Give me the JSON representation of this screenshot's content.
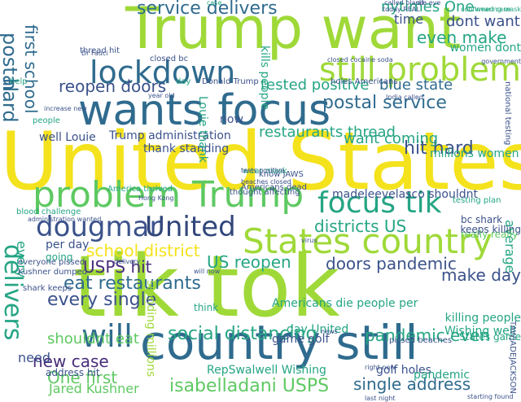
{
  "word_cloud": {
    "palette": {
      "yellow": "#f4e21c",
      "lime": "#9fd938",
      "green": "#5ec962",
      "teal": "#25a584",
      "cyan": "#1f9e89",
      "blue": "#2f6b8e",
      "indigo": "#3b528b",
      "navy": "#31467a",
      "purple": "#472d7b",
      "dark": "#440154"
    },
    "words": [
      {
        "text": "United States",
        "color": "yellow"
      },
      {
        "text": "tik tok",
        "color": "lime"
      },
      {
        "text": "Trump want",
        "color": "lime"
      },
      {
        "text": "wants focus",
        "color": "blue"
      },
      {
        "text": "country still",
        "color": "blue"
      },
      {
        "text": "problem Trump",
        "color": "green"
      },
      {
        "text": "States country",
        "color": "lime"
      },
      {
        "text": "still problem",
        "color": "lime"
      },
      {
        "text": "lockdown",
        "color": "blue"
      },
      {
        "text": "focus tik",
        "color": "teal"
      },
      {
        "text": "dougmar",
        "color": "indigo"
      },
      {
        "text": "United",
        "color": "navy"
      },
      {
        "text": "will",
        "color": "blue"
      },
      {
        "text": "delivers",
        "color": "teal"
      },
      {
        "text": "service delivers",
        "color": "blue"
      },
      {
        "text": "postal service",
        "color": "blue"
      },
      {
        "text": "hit hard",
        "color": "indigo"
      },
      {
        "text": "eat restaurants",
        "color": "blue"
      },
      {
        "text": "every single",
        "color": "indigo"
      },
      {
        "text": "social distancing",
        "color": "teal"
      },
      {
        "text": "USPS hit",
        "color": "purple"
      },
      {
        "text": "new case",
        "color": "purple"
      },
      {
        "text": "reopen doors",
        "color": "indigo"
      },
      {
        "text": "school district",
        "color": "yellow"
      },
      {
        "text": "isabelladani USPS",
        "color": "green"
      },
      {
        "text": "One first",
        "color": "green"
      },
      {
        "text": "single address",
        "color": "blue"
      },
      {
        "text": "pandemic even",
        "color": "teal"
      },
      {
        "text": "make day",
        "color": "indigo"
      },
      {
        "text": "doors pandemic",
        "color": "indigo"
      },
      {
        "text": "US reopen",
        "color": "teal"
      },
      {
        "text": "districts US",
        "color": "teal"
      },
      {
        "text": "even make",
        "color": "teal"
      },
      {
        "text": "dont want",
        "color": "indigo"
      },
      {
        "text": "postal",
        "color": "blue"
      },
      {
        "text": "first school",
        "color": "blue"
      },
      {
        "text": "hard",
        "color": "blue"
      },
      {
        "text": "blue state",
        "color": "blue"
      },
      {
        "text": "want coming",
        "color": "teal"
      },
      {
        "text": "nytimes One",
        "color": "teal"
      },
      {
        "text": "time",
        "color": "indigo"
      },
      {
        "text": "tested positive",
        "color": "teal"
      },
      {
        "text": "restaurants thread",
        "color": "teal"
      },
      {
        "text": "shouldnt eat",
        "color": "green"
      },
      {
        "text": "need",
        "color": "indigo"
      },
      {
        "text": "Jared Kushner",
        "color": "green"
      },
      {
        "text": "madeleevelasco shouldnt",
        "color": "indigo"
      },
      {
        "text": "Americans die people per",
        "color": "teal"
      },
      {
        "text": "Trump administration",
        "color": "indigo"
      },
      {
        "text": "thank standing",
        "color": "indigo"
      },
      {
        "text": "killing people",
        "color": "teal"
      },
      {
        "text": "millions women",
        "color": "teal"
      },
      {
        "text": "well Louie",
        "color": "indigo"
      },
      {
        "text": "RepSwalwell Wishing",
        "color": "teal"
      },
      {
        "text": "golf holes",
        "color": "indigo"
      },
      {
        "text": "Wishing well",
        "color": "teal"
      },
      {
        "text": "per day",
        "color": "indigo"
      },
      {
        "text": "game golf",
        "color": "indigo"
      },
      {
        "text": "day United",
        "color": "teal"
      },
      {
        "text": "women dont",
        "color": "teal"
      },
      {
        "text": "now",
        "color": "indigo"
      },
      {
        "text": "standing millions",
        "color": "lime"
      },
      {
        "text": "Louie thank",
        "color": "teal"
      },
      {
        "text": "kills people",
        "color": "teal"
      },
      {
        "text": "pandemic",
        "color": "teal"
      },
      {
        "text": "average",
        "color": "teal"
      },
      {
        "text": "address hit",
        "color": "indigo"
      },
      {
        "text": "every",
        "color": "teal"
      },
      {
        "text": "going",
        "color": "teal"
      },
      {
        "text": "bc shark",
        "color": "indigo"
      },
      {
        "text": "really really",
        "color": "green"
      },
      {
        "text": "States game",
        "color": "teal"
      },
      {
        "text": "keeps killing",
        "color": "indigo"
      },
      {
        "text": "think",
        "color": "teal"
      },
      {
        "text": "Donald Trump",
        "color": "indigo"
      },
      {
        "text": "holes Americans",
        "color": "indigo"
      },
      {
        "text": "know JAWS",
        "color": "indigo"
      },
      {
        "text": "thread hit",
        "color": "indigo"
      },
      {
        "text": "help",
        "color": "teal"
      },
      {
        "text": "day",
        "color": "teal"
      },
      {
        "text": "people",
        "color": "teal"
      },
      {
        "text": "blood challenge",
        "color": "teal"
      },
      {
        "text": "America thrived",
        "color": "teal"
      },
      {
        "text": "thought affecting",
        "color": "indigo"
      },
      {
        "text": "everyone pissed",
        "color": "indigo"
      },
      {
        "text": "Kushner dumped",
        "color": "indigo"
      },
      {
        "text": "shark keeps",
        "color": "indigo"
      },
      {
        "text": "pissed beaches",
        "color": "indigo"
      },
      {
        "text": "closed bc",
        "color": "indigo"
      },
      {
        "text": "Americans dead",
        "color": "indigo"
      },
      {
        "text": "wear mask",
        "color": "teal"
      },
      {
        "text": "testing plan",
        "color": "teal"
      },
      {
        "text": "Hong Kong",
        "color": "indigo"
      },
      {
        "text": "national testing",
        "color": "indigo"
      },
      {
        "text": "year old",
        "color": "indigo"
      },
      {
        "text": "called bland",
        "color": "indigo"
      },
      {
        "text": "die eve",
        "color": "indigo"
      },
      {
        "text": "today REAL",
        "color": "indigo"
      },
      {
        "text": "Dr Fauci",
        "color": "indigo"
      },
      {
        "text": "case",
        "color": "teal"
      },
      {
        "text": "confirmed case",
        "color": "teal"
      },
      {
        "text": "wearing mask",
        "color": "teal"
      },
      {
        "text": "government",
        "color": "indigo"
      },
      {
        "text": "India called",
        "color": "indigo"
      },
      {
        "text": "closed cocaine soda",
        "color": "indigo"
      },
      {
        "text": "last night",
        "color": "indigo"
      },
      {
        "text": "right now",
        "color": "indigo"
      },
      {
        "text": "starting found",
        "color": "indigo"
      },
      {
        "text": "TAWJADEJACKSON",
        "color": "indigo"
      },
      {
        "text": "delivery",
        "color": "indigo"
      },
      {
        "text": "tests positive",
        "color": "indigo"
      },
      {
        "text": "will now",
        "color": "indigo"
      },
      {
        "text": "increase new",
        "color": "indigo"
      },
      {
        "text": "administration wanted",
        "color": "indigo"
      },
      {
        "text": "news",
        "color": "indigo"
      },
      {
        "text": "virus",
        "color": "indigo"
      },
      {
        "text": "beaches closed",
        "color": "indigo"
      }
    ]
  }
}
